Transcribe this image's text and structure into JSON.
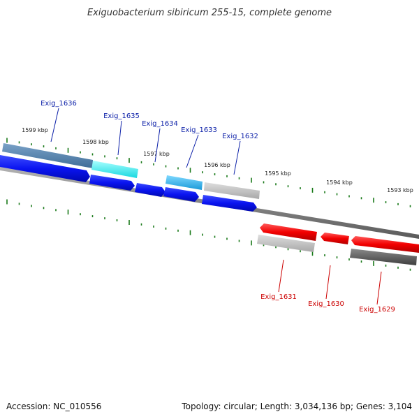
{
  "title": "Exiguobacterium sibiricum 255-15, complete genome",
  "footer": {
    "accession": "Accession: NC_010556",
    "summary": "Topology: circular; Length: 3,034,136 bp; Genes: 3,104"
  },
  "ruler_labels": [
    "1599 kbp",
    "1598 kbp",
    "1597 kbp",
    "1596 kbp",
    "1595 kbp",
    "1594 kbp",
    "1593 kbp"
  ],
  "colors": {
    "forward_label": "#0b1fa8",
    "reverse_label": "#cc0000",
    "tick": "#1a7a1a",
    "backbone": "#7a7a7a"
  },
  "forward_genes": [
    {
      "label": "Exig_1636"
    },
    {
      "label": "Exig_1635"
    },
    {
      "label": "Exig_1634"
    },
    {
      "label": "Exig_1633"
    },
    {
      "label": "Exig_1632"
    }
  ],
  "reverse_genes": [
    {
      "label": "Exig_1631"
    },
    {
      "label": "Exig_1630"
    },
    {
      "label": "Exig_1629"
    }
  ]
}
